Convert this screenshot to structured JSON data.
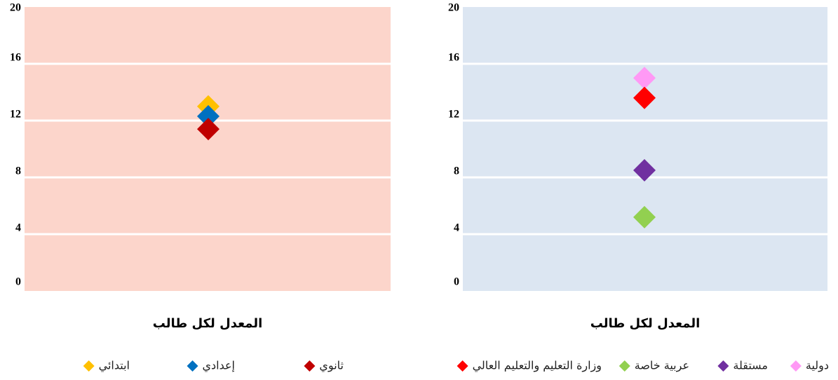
{
  "chart_data": [
    {
      "type": "scatter",
      "background": "#fcd5cb",
      "x_label": "المعدل لكل طالب",
      "ylim": [
        0,
        20
      ],
      "yticks": [
        0,
        4,
        8,
        12,
        16,
        20
      ],
      "grid": true,
      "series": [
        {
          "name": "ابتدائي",
          "color": "#ffc000",
          "values": [
            13
          ]
        },
        {
          "name": "إعدادي",
          "color": "#0070c0",
          "values": [
            12.3
          ]
        },
        {
          "name": "ثانوي",
          "color": "#c00000",
          "values": [
            11.4
          ]
        }
      ]
    },
    {
      "type": "scatter",
      "background": "#dce6f2",
      "x_label": "المعدل لكل طالب",
      "ylim": [
        0,
        20
      ],
      "yticks": [
        0,
        4,
        8,
        12,
        16,
        20
      ],
      "grid": true,
      "series": [
        {
          "name": "دولية",
          "color": "#ff99f5",
          "values": [
            15
          ]
        },
        {
          "name": "مستقلة",
          "color": "#7030a0",
          "values": [
            8.5
          ]
        },
        {
          "name": "عربية خاصة",
          "color": "#92d050",
          "values": [
            5.2
          ]
        },
        {
          "name": "وزارة التعليم والتعليم العالي",
          "color": "#ff0000",
          "values": [
            13.6
          ]
        }
      ]
    }
  ]
}
